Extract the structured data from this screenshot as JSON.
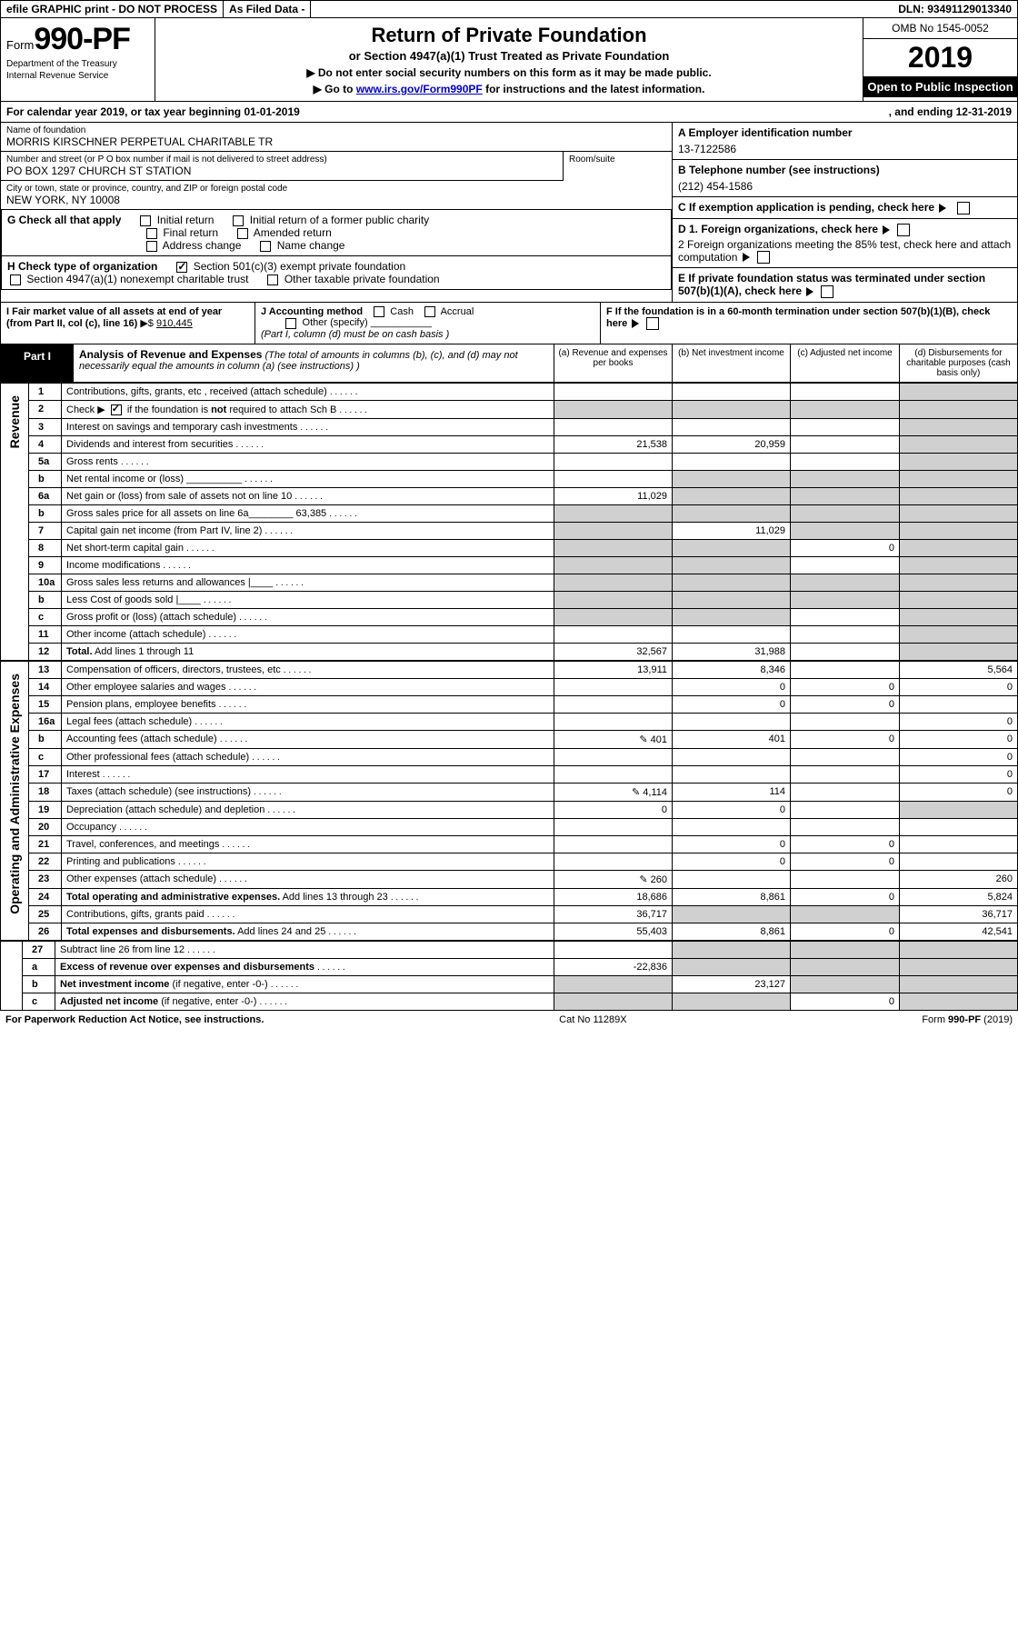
{
  "topbar": {
    "efile": "efile GRAPHIC print - DO NOT PROCESS",
    "asfiled": "As Filed Data -",
    "dln": "DLN: 93491129013340"
  },
  "header": {
    "form_prefix": "Form",
    "form_number": "990-PF",
    "dept1": "Department of the Treasury",
    "dept2": "Internal Revenue Service",
    "title": "Return of Private Foundation",
    "subtitle": "or Section 4947(a)(1) Trust Treated as Private Foundation",
    "note1": "▶ Do not enter social security numbers on this form as it may be made public.",
    "note2_pre": "▶ Go to ",
    "note2_link": "www.irs.gov/Form990PF",
    "note2_post": " for instructions and the latest information.",
    "omb": "OMB No 1545-0052",
    "year": "2019",
    "open": "Open to Public Inspection"
  },
  "calrow": {
    "text1": "For calendar year 2019, or tax year beginning 01-01-2019",
    "text2": ", and ending 12-31-2019"
  },
  "foundation": {
    "name_label": "Name of foundation",
    "name": "MORRIS KIRSCHNER PERPETUAL CHARITABLE TR",
    "addr_label": "Number and street (or P O  box number if mail is not delivered to street address)",
    "addr": "PO BOX 1297 CHURCH ST STATION",
    "room_label": "Room/suite",
    "city_label": "City or town, state or province, country, and ZIP or foreign postal code",
    "city": "NEW YORK, NY  10008"
  },
  "rightinfo": {
    "a_label": "A Employer identification number",
    "a_val": "13-7122586",
    "b_label": "B Telephone number (see instructions)",
    "b_val": "(212) 454-1586",
    "c_label": "C If exemption application is pending, check here",
    "d1": "D 1. Foreign organizations, check here",
    "d2": "2  Foreign organizations meeting the 85% test, check here and attach computation",
    "e": "E  If private foundation status was terminated under section 507(b)(1)(A), check here",
    "f": "F  If the foundation is in a 60-month termination under section 507(b)(1)(B), check here"
  },
  "g": {
    "label": "G Check all that apply",
    "opts": [
      "Initial return",
      "Initial return of a former public charity",
      "Final return",
      "Amended return",
      "Address change",
      "Name change"
    ]
  },
  "h": {
    "label": "H Check type of organization",
    "opt1": "Section 501(c)(3) exempt private foundation",
    "opt2": "Section 4947(a)(1) nonexempt charitable trust",
    "opt3": "Other taxable private foundation"
  },
  "i": {
    "label": "I Fair market value of all assets at end of year (from Part II, col  (c), line 16)",
    "val_prefix": "▶$ ",
    "val": "910,445"
  },
  "j": {
    "label": "J Accounting method",
    "cash": "Cash",
    "accrual": "Accrual",
    "other": "Other (specify)",
    "note": "(Part I, column (d) must be on cash basis )"
  },
  "part1": {
    "label": "Part I",
    "title": "Analysis of Revenue and Expenses",
    "desc": " (The total of amounts in columns (b), (c), and (d) may not necessarily equal the amounts in column (a) (see instructions) )",
    "cols": {
      "a": "(a)   Revenue and expenses per books",
      "b": "(b)  Net investment income",
      "c": "(c)  Adjusted net income",
      "d": "(d)  Disbursements for charitable purposes (cash basis only)"
    }
  },
  "section_labels": {
    "revenue": "Revenue",
    "expenses": "Operating and Administrative Expenses"
  },
  "rows": [
    {
      "n": "1",
      "d": "",
      "a": "",
      "b": "",
      "c": "",
      "d_shade": true
    },
    {
      "n": "2",
      "d": "",
      "a": "",
      "b": "",
      "c": "",
      "all_shade": true
    },
    {
      "n": "3",
      "d": "",
      "a": "",
      "b": "",
      "c": "",
      "d_shade": true
    },
    {
      "n": "4",
      "d": "",
      "a": "21,538",
      "b": "20,959",
      "c": "",
      "d_shade": true
    },
    {
      "n": "5a",
      "d": "",
      "a": "",
      "b": "",
      "c": "",
      "d_shade": true
    },
    {
      "n": "b",
      "d": "",
      "a": "",
      "b": "",
      "c": "",
      "bcd_shade": true
    },
    {
      "n": "6a",
      "d": "",
      "a": "11,029",
      "b": "",
      "c": "",
      "bcd_shade": true
    },
    {
      "n": "b",
      "d": "",
      "a": "",
      "b": "",
      "c": "",
      "abcd_shade": true
    },
    {
      "n": "7",
      "d": "",
      "a": "",
      "b": "11,029",
      "c": "",
      "a_shade": true,
      "cd_shade": true
    },
    {
      "n": "8",
      "d": "",
      "a": "",
      "b": "",
      "c": "0",
      "ab_shade": true,
      "d_shade": true
    },
    {
      "n": "9",
      "d": "",
      "a": "",
      "b": "",
      "c": "",
      "ab_shade": true,
      "d_shade": true
    },
    {
      "n": "10a",
      "d": "",
      "a": "",
      "b": "",
      "c": "",
      "abcd_shade": true
    },
    {
      "n": "b",
      "d": "",
      "a": "",
      "b": "",
      "c": "",
      "abcd_shade": true
    },
    {
      "n": "c",
      "d": "",
      "a": "",
      "b": "",
      "c": "",
      "ab_shade": true,
      "d_shade": true
    },
    {
      "n": "11",
      "d": "",
      "a": "",
      "b": "",
      "c": "",
      "d_shade": true
    },
    {
      "n": "12",
      "d": "",
      "a": "32,567",
      "b": "31,988",
      "c": "",
      "bold": true,
      "d_shade": true
    }
  ],
  "rows2": [
    {
      "n": "13",
      "d": "5,564",
      "a": "13,911",
      "b": "8,346",
      "c": ""
    },
    {
      "n": "14",
      "d": "0",
      "a": "",
      "b": "0",
      "c": "0"
    },
    {
      "n": "15",
      "d": "",
      "a": "",
      "b": "0",
      "c": "0"
    },
    {
      "n": "16a",
      "d": "0",
      "a": "",
      "b": "",
      "c": ""
    },
    {
      "n": "b",
      "d": "0",
      "icon": true,
      "a": "401",
      "b": "401",
      "c": "0"
    },
    {
      "n": "c",
      "d": "0",
      "a": "",
      "b": "",
      "c": ""
    },
    {
      "n": "17",
      "d": "0",
      "a": "",
      "b": "",
      "c": ""
    },
    {
      "n": "18",
      "d": "0",
      "icon": true,
      "a": "4,114",
      "b": "114",
      "c": ""
    },
    {
      "n": "19",
      "d": "",
      "a": "0",
      "b": "0",
      "c": "",
      "d_shade": true
    },
    {
      "n": "20",
      "d": "",
      "a": "",
      "b": "",
      "c": ""
    },
    {
      "n": "21",
      "d": "",
      "a": "",
      "b": "0",
      "c": "0"
    },
    {
      "n": "22",
      "d": "",
      "a": "",
      "b": "0",
      "c": "0"
    },
    {
      "n": "23",
      "d": "260",
      "icon": true,
      "a": "260",
      "b": "",
      "c": ""
    },
    {
      "n": "24",
      "d": "5,824",
      "a": "18,686",
      "b": "8,861",
      "c": "0",
      "bold": true
    },
    {
      "n": "25",
      "d": "36,717",
      "a": "36,717",
      "b": "",
      "c": "",
      "bc_shade": true
    },
    {
      "n": "26",
      "d": "42,541",
      "a": "55,403",
      "b": "8,861",
      "c": "0",
      "bold": true
    }
  ],
  "rows3": [
    {
      "n": "27",
      "d": "",
      "a": "",
      "b": "",
      "c": "",
      "bcd_shade": true
    },
    {
      "n": "a",
      "d": "",
      "a": "-22,836",
      "b": "",
      "c": "",
      "bold": true,
      "bcd_shade": true
    },
    {
      "n": "b",
      "d": "",
      "a": "",
      "b": "23,127",
      "c": "",
      "bold": true,
      "a_shade": true,
      "cd_shade": true
    },
    {
      "n": "c",
      "d": "",
      "a": "",
      "b": "",
      "c": "0",
      "bold": true,
      "ab_shade": true,
      "d_shade": true
    }
  ],
  "footer": {
    "left": "For Paperwork Reduction Act Notice, see instructions.",
    "mid": "Cat  No  11289X",
    "right": "Form 990-PF (2019)"
  }
}
